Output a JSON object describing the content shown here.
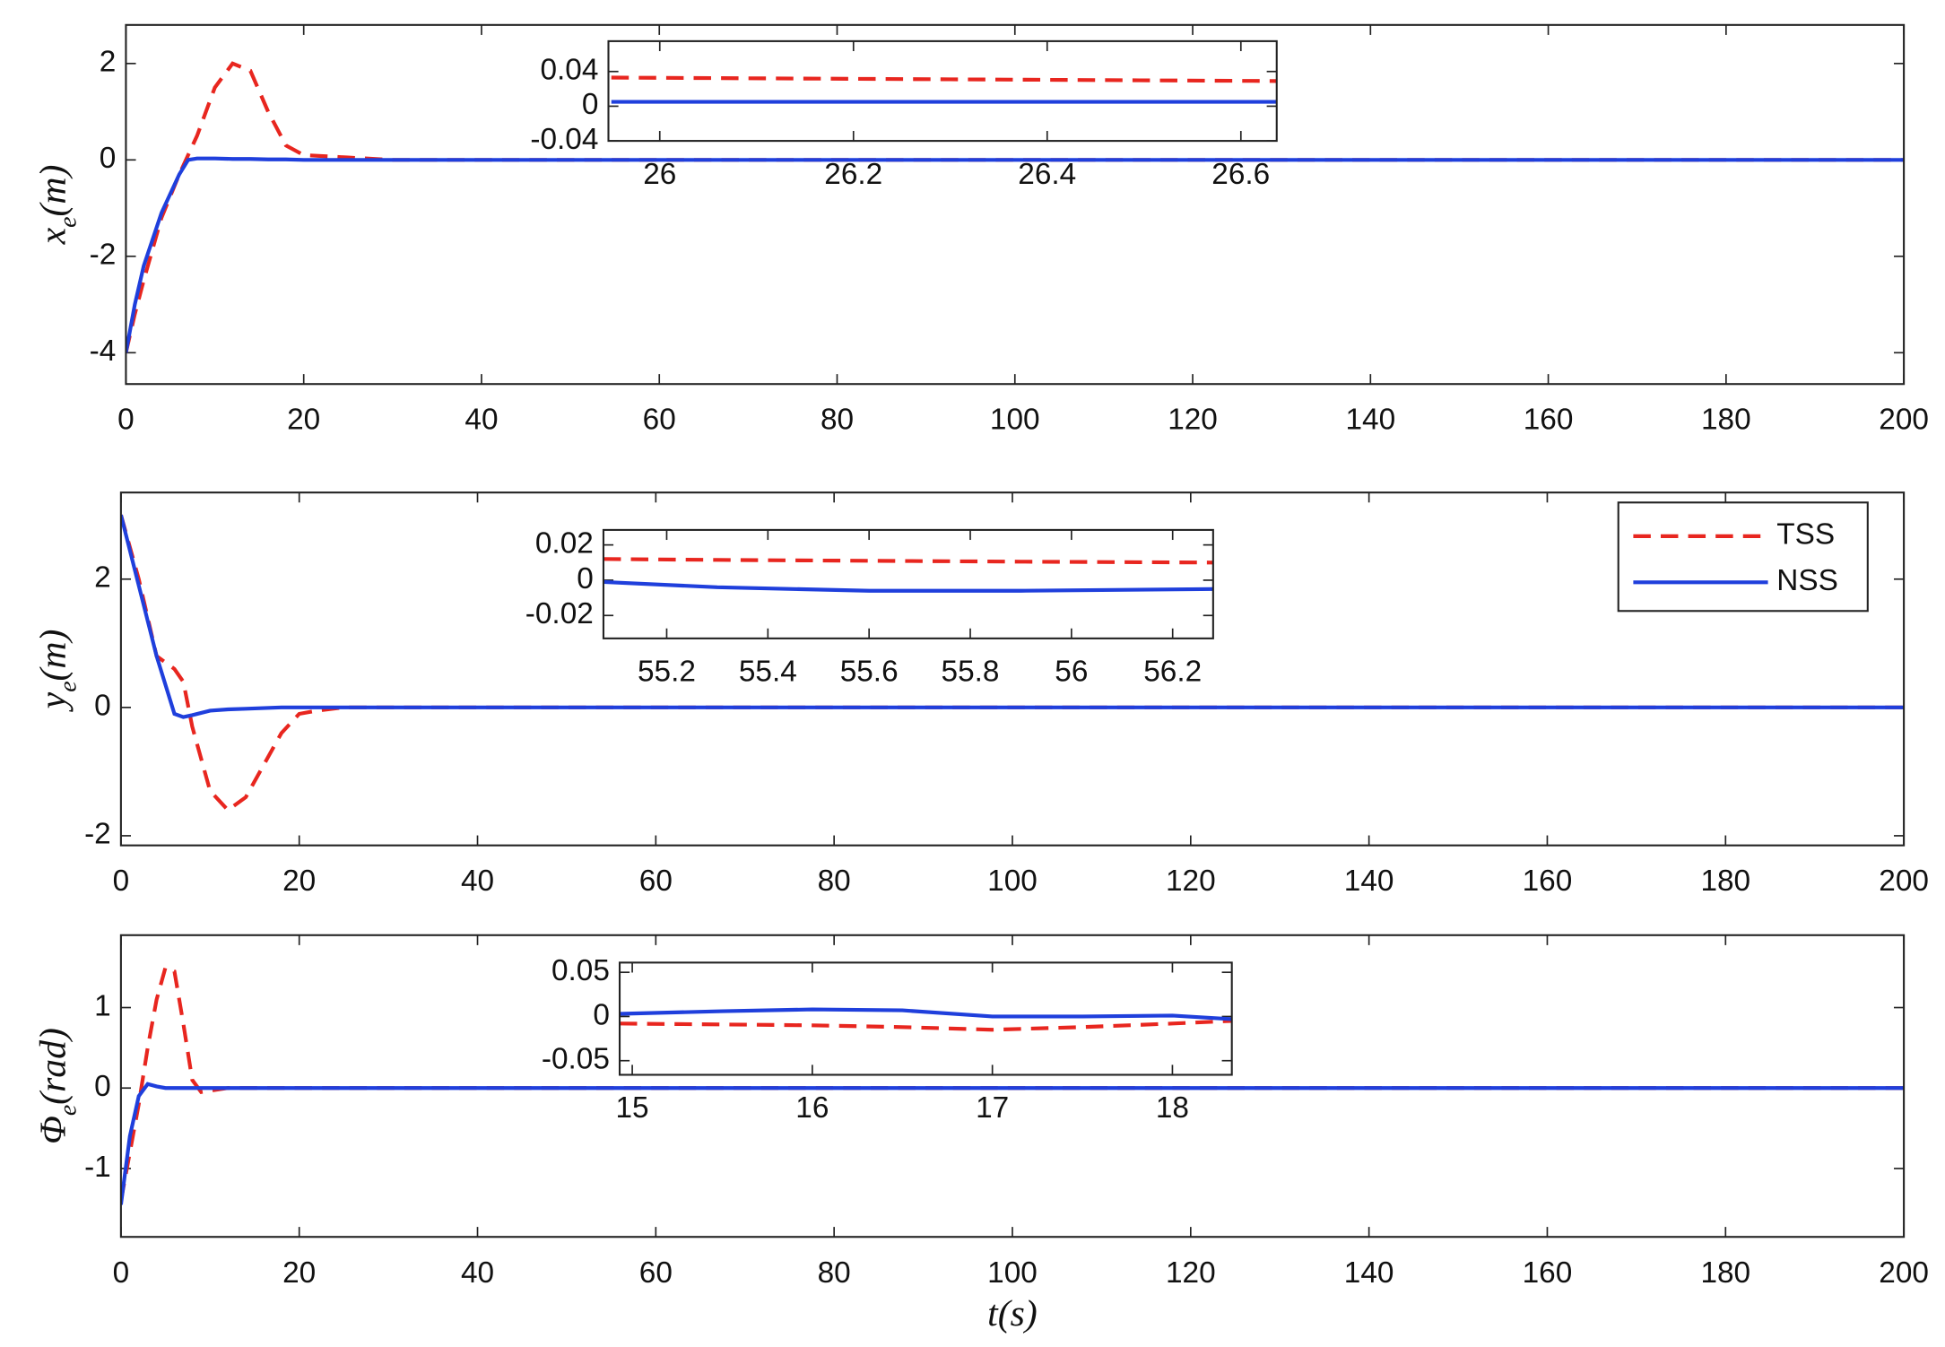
{
  "chart_data": [
    {
      "type": "line",
      "ylabel": {
        "base": "x",
        "sub": "e",
        "rest": "(m)"
      },
      "x": [
        0,
        1,
        2,
        4,
        6,
        7,
        8,
        10,
        12,
        14,
        16,
        18,
        20,
        25,
        30,
        200
      ],
      "series": [
        {
          "color": "#e8261f",
          "style": "dashed",
          "values": [
            -4,
            -3.2,
            -2.5,
            -1.2,
            -0.3,
            0.1,
            0.5,
            1.5,
            2.0,
            1.85,
            1.0,
            0.3,
            0.1,
            0.05,
            0,
            0
          ]
        },
        {
          "color": "#1f3fdc",
          "style": "solid",
          "values": [
            -4,
            -3,
            -2.2,
            -1.1,
            -0.3,
            0,
            0.03,
            0.03,
            0.02,
            0.02,
            0.01,
            0.01,
            0,
            0,
            0,
            0
          ]
        }
      ],
      "xlim": [
        0,
        200
      ],
      "xticks": [
        0,
        20,
        40,
        60,
        80,
        100,
        120,
        140,
        160,
        180,
        200
      ],
      "ylim": [
        -4.65,
        2.8
      ],
      "yticks": [
        -4,
        -2,
        0,
        2
      ]
    },
    {
      "type": "line",
      "x": [
        25.95,
        26.3,
        26.64
      ],
      "series": [
        {
          "color": "#e8261f",
          "style": "dashed",
          "values": [
            0.033,
            0.031,
            0.029
          ]
        },
        {
          "color": "#1f3fdc",
          "style": "solid",
          "values": [
            0.005,
            0.005,
            0.005
          ]
        }
      ],
      "xlim": [
        25.947,
        26.637
      ],
      "xticks": [
        26,
        26.2,
        26.4,
        26.6
      ],
      "ylim": [
        -0.04,
        0.075
      ],
      "yticks": [
        -0.04,
        0,
        0.04
      ]
    },
    {
      "type": "line",
      "ylabel": {
        "base": "y",
        "sub": "e",
        "rest": "(m)"
      },
      "x": [
        0,
        2,
        4,
        6,
        7,
        8,
        10,
        12,
        14,
        16,
        18,
        20,
        22,
        25,
        200
      ],
      "series": [
        {
          "name": "TSS",
          "color": "#e8261f",
          "style": "dashed",
          "values": [
            3,
            2,
            0.8,
            0.6,
            0.4,
            -0.3,
            -1.3,
            -1.6,
            -1.4,
            -0.9,
            -0.4,
            -0.1,
            -0.05,
            0,
            0
          ]
        },
        {
          "name": "NSS",
          "color": "#1f3fdc",
          "style": "solid",
          "values": [
            3,
            1.9,
            0.8,
            -0.1,
            -0.15,
            -0.12,
            -0.05,
            -0.03,
            -0.02,
            -0.01,
            0,
            0,
            0,
            0,
            0
          ]
        }
      ],
      "legend": "upper right",
      "xlim": [
        0,
        200
      ],
      "xticks": [
        0,
        20,
        40,
        60,
        80,
        100,
        120,
        140,
        160,
        180,
        200
      ],
      "ylim": [
        -2.15,
        3.35
      ],
      "yticks": [
        -2,
        0,
        2
      ]
    },
    {
      "type": "line",
      "x": [
        55.075,
        55.3,
        55.6,
        55.9,
        56.28
      ],
      "series": [
        {
          "color": "#e8261f",
          "style": "dashed",
          "values": [
            0.012,
            0.0115,
            0.011,
            0.0105,
            0.01
          ]
        },
        {
          "color": "#1f3fdc",
          "style": "solid",
          "values": [
            -0.001,
            -0.004,
            -0.006,
            -0.006,
            -0.005
          ]
        }
      ],
      "xlim": [
        55.075,
        56.28
      ],
      "xticks": [
        55.2,
        55.4,
        55.6,
        55.8,
        56,
        56.2
      ],
      "ylim": [
        -0.033,
        0.0285
      ],
      "yticks": [
        -0.02,
        0,
        0.02
      ]
    },
    {
      "type": "line",
      "ylabel": {
        "base": "Φ",
        "sub": "e",
        "rest": "(rad)"
      },
      "xlabel": {
        "base": "t",
        "rest": "(s)"
      },
      "x": [
        0,
        1,
        2,
        3,
        4,
        5,
        6,
        7,
        8,
        9,
        12,
        200
      ],
      "series": [
        {
          "color": "#e8261f",
          "style": "dashed",
          "values": [
            -1.4,
            -0.8,
            -0.2,
            0.5,
            1.1,
            1.5,
            1.45,
            0.8,
            0.1,
            -0.05,
            0,
            0
          ]
        },
        {
          "color": "#1f3fdc",
          "style": "solid",
          "values": [
            -1.45,
            -0.6,
            -0.1,
            0.05,
            0.02,
            0,
            0,
            0,
            0,
            0,
            0,
            0
          ]
        }
      ],
      "xlim": [
        0,
        200
      ],
      "xticks": [
        0,
        20,
        40,
        60,
        80,
        100,
        120,
        140,
        160,
        180,
        200
      ],
      "ylim": [
        -1.85,
        1.9
      ],
      "yticks": [
        -1,
        0,
        1
      ]
    },
    {
      "type": "line",
      "x": [
        14.93,
        15.5,
        16,
        16.5,
        17,
        17.5,
        18,
        18.33
      ],
      "series": [
        {
          "color": "#e8261f",
          "style": "dashed",
          "values": [
            -0.008,
            -0.009,
            -0.01,
            -0.012,
            -0.015,
            -0.012,
            -0.008,
            -0.005
          ]
        },
        {
          "color": "#1f3fdc",
          "style": "solid",
          "values": [
            0.003,
            0.006,
            0.008,
            0.007,
            0.0,
            0.0,
            0.001,
            -0.003
          ]
        }
      ],
      "xlim": [
        14.93,
        18.33
      ],
      "xticks": [
        15,
        16,
        17,
        18
      ],
      "ylim": [
        -0.066,
        0.061
      ],
      "yticks": [
        -0.05,
        0,
        0.05
      ]
    }
  ]
}
